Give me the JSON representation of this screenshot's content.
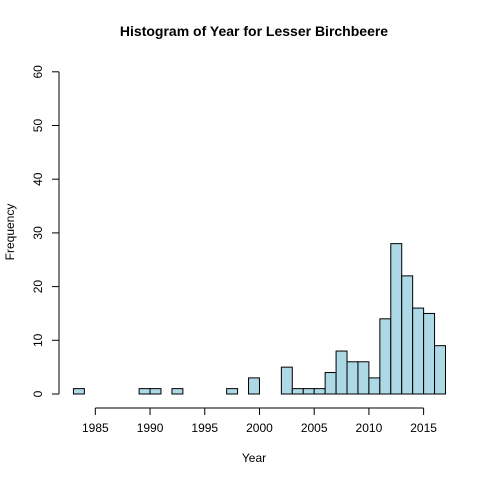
{
  "chart_data": {
    "type": "bar",
    "title": "Histogram of Year for Lesser Birchbeere",
    "xlabel": "Year",
    "ylabel": "Frequency",
    "bar_color": "#add8e6",
    "edge_color": "#000000",
    "xlim": [
      1982,
      2017
    ],
    "ylim": [
      0,
      60
    ],
    "x_ticks": [
      1985,
      1990,
      1995,
      2000,
      2005,
      2010,
      2015
    ],
    "y_ticks": [
      0,
      10,
      20,
      30,
      40,
      50,
      60
    ],
    "bins": [
      {
        "start": 1983,
        "end": 1984,
        "count": 1
      },
      {
        "start": 1989,
        "end": 1990,
        "count": 1
      },
      {
        "start": 1990,
        "end": 1991,
        "count": 1
      },
      {
        "start": 1992,
        "end": 1993,
        "count": 1
      },
      {
        "start": 1997,
        "end": 1998,
        "count": 1
      },
      {
        "start": 1999,
        "end": 2000,
        "count": 3
      },
      {
        "start": 2002,
        "end": 2003,
        "count": 5
      },
      {
        "start": 2003,
        "end": 2004,
        "count": 1
      },
      {
        "start": 2004,
        "end": 2005,
        "count": 1
      },
      {
        "start": 2005,
        "end": 2006,
        "count": 1
      },
      {
        "start": 2006,
        "end": 2007,
        "count": 4
      },
      {
        "start": 2007,
        "end": 2008,
        "count": 8
      },
      {
        "start": 2008,
        "end": 2009,
        "count": 6
      },
      {
        "start": 2009,
        "end": 2010,
        "count": 6
      },
      {
        "start": 2010,
        "end": 2011,
        "count": 3
      },
      {
        "start": 2011,
        "end": 2012,
        "count": 14
      },
      {
        "start": 2012,
        "end": 2013,
        "count": 28
      },
      {
        "start": 2013,
        "end": 2014,
        "count": 22
      },
      {
        "start": 2014,
        "end": 2015,
        "count": 16
      },
      {
        "start": 2015,
        "end": 2016,
        "count": 15
      },
      {
        "start": 2016,
        "end": 2017,
        "count": 9
      }
    ]
  }
}
